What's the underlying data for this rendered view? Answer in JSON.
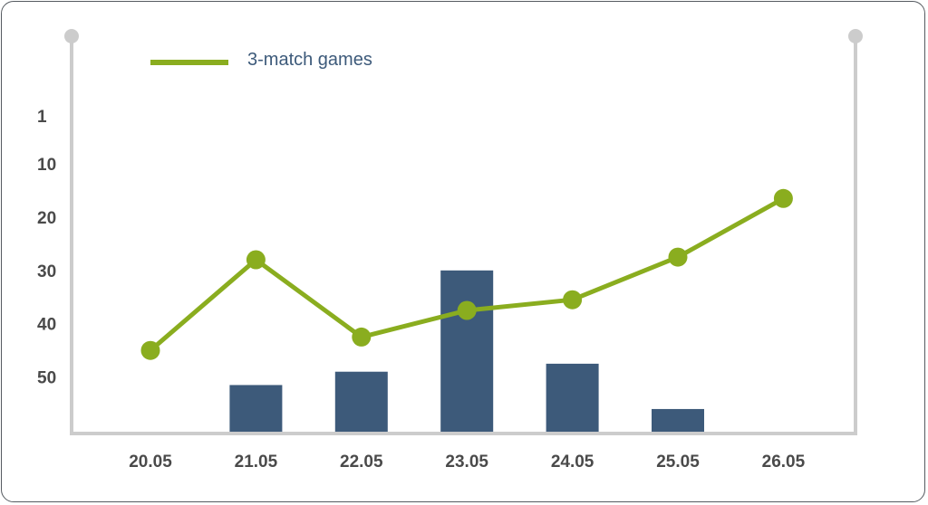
{
  "chart_data": {
    "type": "bar+line",
    "categories": [
      "20.05",
      "21.05",
      "22.05",
      "23.05",
      "24.05",
      "25.05",
      "26.05"
    ],
    "y_ticks": [
      "1",
      "10",
      "20",
      "30",
      "40",
      "50"
    ],
    "y_tick_values": [
      1,
      10,
      20,
      30,
      40,
      50
    ],
    "y_inverted": true,
    "ylim": [
      1,
      59.5
    ],
    "series": [
      {
        "type": "bar",
        "values": [
          null,
          51.5,
          49,
          30,
          47.5,
          56,
          null
        ],
        "color": "#3d5a7a"
      },
      {
        "type": "line",
        "name": "3-match games",
        "values": [
          45,
          28,
          42.5,
          37.5,
          35.5,
          27.5,
          16.5
        ],
        "color": "#8aad1f"
      }
    ],
    "legend": {
      "placement": "top-left"
    },
    "grid": false,
    "axis_color": "#cccccc"
  }
}
